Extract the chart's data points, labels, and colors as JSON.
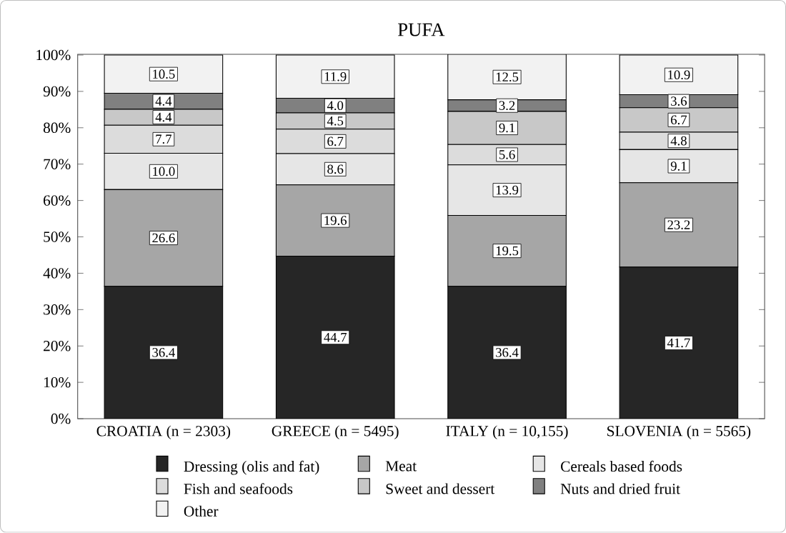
{
  "chart_data": {
    "type": "bar",
    "stacked": true,
    "title": "PUFA",
    "categories": [
      "CROATIA (n = 2303)",
      "GREECE (n = 5495)",
      "ITALY (n = 10,155)",
      "SLOVENIA (n = 5565)"
    ],
    "series": [
      {
        "name": "Dressing (olis and fat)",
        "color": "#262626",
        "values": [
          36.4,
          44.7,
          36.4,
          41.7
        ],
        "value_labels": [
          "36.4",
          "44.7",
          "36.4",
          "41.7"
        ]
      },
      {
        "name": "Meat",
        "color": "#a6a6a6",
        "values": [
          26.6,
          19.6,
          19.5,
          23.2
        ],
        "value_labels": [
          "26.6",
          "19.6",
          "19.5",
          "23.2"
        ]
      },
      {
        "name": "Cereals based foods",
        "color": "#e6e6e6",
        "values": [
          10.0,
          8.6,
          13.9,
          9.1
        ],
        "value_labels": [
          "10.0",
          "8.6",
          "13.9",
          "9.1"
        ]
      },
      {
        "name": "Fish and seafoods",
        "color": "#dcdcdc",
        "values": [
          7.7,
          6.7,
          5.6,
          4.8
        ],
        "value_labels": [
          "7.7",
          "6.7",
          "5.6",
          "4.8"
        ]
      },
      {
        "name": "Sweet and dessert",
        "color": "#c8c8c8",
        "values": [
          4.4,
          4.5,
          9.1,
          6.7
        ],
        "value_labels": [
          "4.4",
          "4.5",
          "9.1",
          "6.7"
        ]
      },
      {
        "name": "Nuts and dried fruit",
        "color": "#808080",
        "values": [
          4.4,
          4.0,
          3.2,
          3.6
        ],
        "value_labels": [
          "4.4",
          "4.0",
          "3.2",
          "3.6"
        ]
      },
      {
        "name": "Other",
        "color": "#f2f2f2",
        "values": [
          10.5,
          11.9,
          12.5,
          10.9
        ],
        "value_labels": [
          "10.5",
          "11.9",
          "12.5",
          "10.9"
        ]
      }
    ],
    "ylim": [
      0,
      100.2
    ],
    "yticks": [
      {
        "value": 0,
        "label": "0%"
      },
      {
        "value": 10,
        "label": "10%"
      },
      {
        "value": 20,
        "label": "20%"
      },
      {
        "value": 30,
        "label": "30%"
      },
      {
        "value": 40,
        "label": "40%"
      },
      {
        "value": 50,
        "label": "50%"
      },
      {
        "value": 60,
        "label": "60%"
      },
      {
        "value": 70,
        "label": "70%"
      },
      {
        "value": 80,
        "label": "80%"
      },
      {
        "value": 90,
        "label": "90%"
      },
      {
        "value": 100,
        "label": "100%"
      }
    ],
    "legend": "bottom"
  }
}
